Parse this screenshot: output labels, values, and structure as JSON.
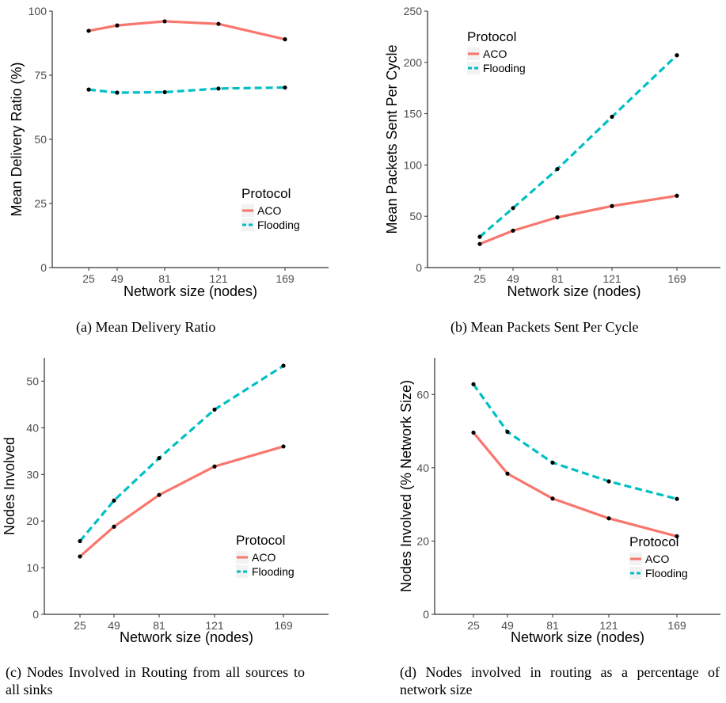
{
  "chart_data": [
    {
      "id": "a",
      "type": "line",
      "caption": "(a) Mean Delivery Ratio",
      "xlabel": "Network size (nodes)",
      "ylabel": "Mean Delivery Ratio (%)",
      "x": [
        25,
        49,
        81,
        121,
        169
      ],
      "xticks": [
        "25",
        "49",
        "81",
        "121",
        "169"
      ],
      "ylim": [
        0,
        100
      ],
      "yticks": [
        "0",
        "25",
        "50",
        "75",
        "100"
      ],
      "grid": false,
      "legend": {
        "title": "Protocol",
        "placement": "bottom-right"
      },
      "series": [
        {
          "name": "ACO",
          "values": [
            92.3,
            94.4,
            96.0,
            95.0,
            89.0
          ],
          "color": "#f8766d",
          "dash": "solid"
        },
        {
          "name": "Flooding",
          "values": [
            69.4,
            68.2,
            68.4,
            69.8,
            70.2
          ],
          "color": "#00bfc4",
          "dash": "dashed"
        }
      ]
    },
    {
      "id": "b",
      "type": "line",
      "caption": "(b) Mean Packets Sent Per Cycle",
      "xlabel": "Network size (nodes)",
      "ylabel": "Mean Packets Sent Per Cycle",
      "x": [
        25,
        49,
        81,
        121,
        169
      ],
      "xticks": [
        "25",
        "49",
        "81",
        "121",
        "169"
      ],
      "ylim": [
        0,
        250
      ],
      "yticks": [
        "0",
        "50",
        "100",
        "150",
        "200",
        "250"
      ],
      "grid": false,
      "legend": {
        "title": "Protocol",
        "placement": "top-left"
      },
      "series": [
        {
          "name": "ACO",
          "values": [
            23,
            36,
            49,
            60,
            70
          ],
          "color": "#f8766d",
          "dash": "solid"
        },
        {
          "name": "Flooding",
          "values": [
            30,
            58,
            96,
            147,
            207
          ],
          "color": "#00bfc4",
          "dash": "dashed"
        }
      ]
    },
    {
      "id": "c",
      "type": "line",
      "caption": "(c) Nodes Involved in Routing from all sources to all sinks",
      "xlabel": "Network size (nodes)",
      "ylabel": "Nodes Involved",
      "x": [
        25,
        49,
        81,
        121,
        169
      ],
      "xticks": [
        "25",
        "49",
        "81",
        "121",
        "169"
      ],
      "ylim": [
        0,
        55
      ],
      "yticks": [
        "0",
        "10",
        "20",
        "30",
        "40",
        "50"
      ],
      "grid": false,
      "legend": {
        "title": "Protocol",
        "placement": "bottom-right"
      },
      "series": [
        {
          "name": "ACO",
          "values": [
            12.4,
            18.8,
            25.6,
            31.7,
            36.0
          ],
          "color": "#f8766d",
          "dash": "solid"
        },
        {
          "name": "Flooding",
          "values": [
            15.7,
            24.4,
            33.5,
            43.9,
            53.3
          ],
          "color": "#00bfc4",
          "dash": "dashed"
        }
      ]
    },
    {
      "id": "d",
      "type": "line",
      "caption": "(d) Nodes involved in routing as a percentage of network size",
      "xlabel": "Network size (nodes)",
      "ylabel": "Nodes Involved (% Network Size)",
      "x": [
        25,
        49,
        81,
        121,
        169
      ],
      "xticks": [
        "25",
        "49",
        "81",
        "121",
        "169"
      ],
      "ylim": [
        0,
        70
      ],
      "yticks": [
        "0",
        "20",
        "40",
        "60"
      ],
      "grid": false,
      "legend": {
        "title": "Protocol",
        "placement": "bottom-right"
      },
      "series": [
        {
          "name": "ACO",
          "values": [
            49.6,
            38.4,
            31.6,
            26.2,
            21.3
          ],
          "color": "#f8766d",
          "dash": "solid"
        },
        {
          "name": "Flooding",
          "values": [
            62.8,
            49.8,
            41.4,
            36.3,
            31.5
          ],
          "color": "#00bfc4",
          "dash": "dashed"
        }
      ]
    }
  ]
}
